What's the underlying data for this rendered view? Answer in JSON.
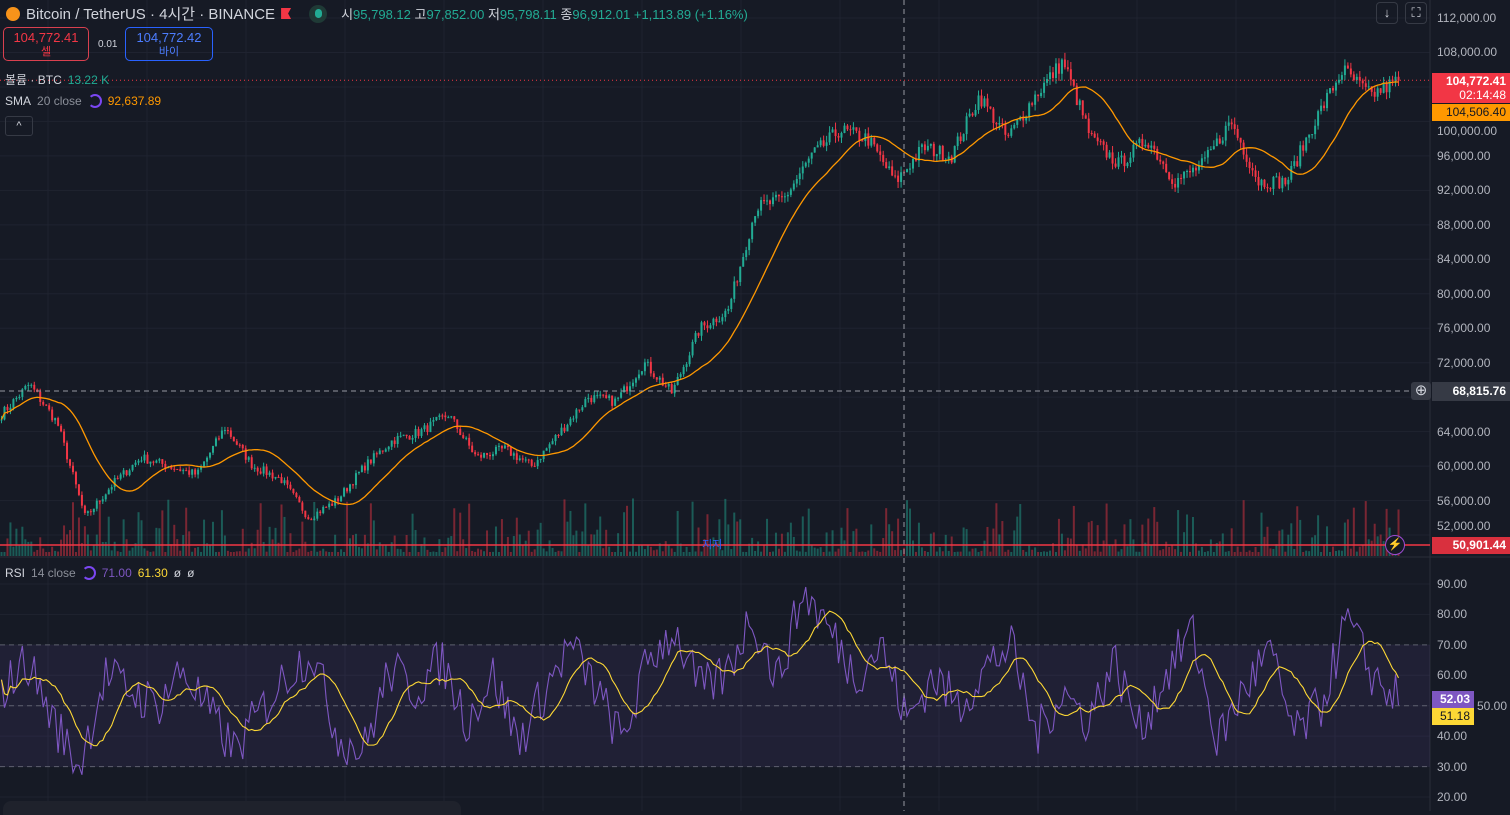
{
  "header": {
    "title": "Bitcoin / TetherUS · 4시간 · BINANCE",
    "o_label": "시",
    "open": "95,798.12",
    "h_label": "고",
    "high": "97,852.00",
    "l_label": "저",
    "low": "95,798.11",
    "c_label": "종",
    "close": "96,912.01",
    "change": "+1,113.89 (+1.16%)"
  },
  "trade": {
    "sell_price": "104,772.41",
    "sell_label": "셀",
    "spread": "0.01",
    "buy_price": "104,772.42",
    "buy_label": "바이"
  },
  "legend": {
    "volume_label": "볼륨 · BTC",
    "volume_value": "13.22 K",
    "sma_label": "SMA",
    "sma_params": "20 close",
    "sma_value": "92,637.89",
    "collapse": "^"
  },
  "rsi_legend": {
    "label": "RSI",
    "params": "14 close",
    "v1": "71.00",
    "v2": "61.30",
    "v3": "ø",
    "v4": "ø"
  },
  "toolbar": {
    "down": "↓",
    "fullscreen": "⛶"
  },
  "price_axis": [
    "112,000.00",
    "108,000.00",
    "100,000.00",
    "96,000.00",
    "92,000.00",
    "88,000.00",
    "84,000.00",
    "80,000.00",
    "76,000.00",
    "72,000.00",
    "64,000.00",
    "60,000.00",
    "56,000.00",
    "52,000.00"
  ],
  "rsi_axis": [
    "90.00",
    "80.00",
    "70.00",
    "60.00",
    "50.00",
    "40.00",
    "30.00",
    "20.00"
  ],
  "tags": {
    "last_price": "104,772.41",
    "countdown": "02:14:48",
    "sma_tag": "104,506.40",
    "crosshair_price": "68,815.76",
    "support_price": "50,901.44",
    "rsi_tag": "52.03",
    "rsi_ma_tag": "51.18"
  },
  "support_label": "지지",
  "colors": {
    "up": "#22ab94",
    "down": "#f23645",
    "sma": "#ff9800",
    "rsi": "#7e57c2",
    "rsi_ma": "#fdd835"
  },
  "chart_data": {
    "type": "candlestick",
    "interval": "4h",
    "price_range": [
      48000,
      114000
    ],
    "close_anchors": [
      66000,
      69500,
      65000,
      54000,
      58000,
      61000,
      60000,
      59000,
      64500,
      60000,
      58500,
      54000,
      56000,
      60000,
      63000,
      64000,
      66000,
      61000,
      62000,
      60000,
      64000,
      68000,
      67500,
      72000,
      68500,
      76000,
      78000,
      90000,
      91000,
      96000,
      99000,
      98000,
      93000,
      97000,
      96000,
      103000,
      98000,
      103000,
      107000,
      98000,
      95000,
      98000,
      93000,
      95000,
      100000,
      93000,
      93000,
      100000,
      106000,
      103000,
      104772
    ],
    "rsi_range": [
      18,
      92
    ],
    "rsi_anchors": [
      55,
      65,
      45,
      30,
      60,
      55,
      50,
      62,
      48,
      35,
      48,
      60,
      68,
      40,
      35,
      62,
      55,
      65,
      45,
      60,
      38,
      55,
      70,
      55,
      38,
      65,
      75,
      55,
      60,
      80,
      58,
      88,
      75,
      60,
      70,
      45,
      60,
      50,
      62,
      70,
      40,
      55,
      45,
      65,
      42,
      60,
      75,
      38,
      55,
      68,
      40,
      50,
      78,
      60,
      52
    ],
    "rsi_levels": [
      70,
      50,
      30
    ]
  }
}
